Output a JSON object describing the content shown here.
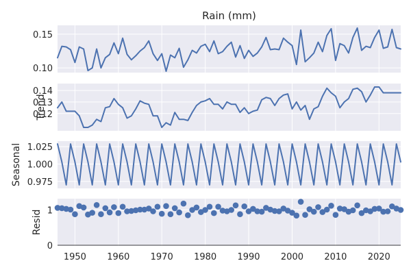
{
  "chart_data": {
    "type": "line",
    "title": "Rain (mm)",
    "colors": {
      "series": "#4c72b0",
      "background": "#eaeaf2",
      "grid": "#ffffff"
    },
    "x": [
      1946,
      1947,
      1948,
      1949,
      1950,
      1951,
      1952,
      1953,
      1954,
      1955,
      1956,
      1957,
      1958,
      1959,
      1960,
      1961,
      1962,
      1963,
      1964,
      1965,
      1966,
      1967,
      1968,
      1969,
      1970,
      1971,
      1972,
      1973,
      1974,
      1975,
      1976,
      1977,
      1978,
      1979,
      1980,
      1981,
      1982,
      1983,
      1984,
      1985,
      1986,
      1987,
      1988,
      1989,
      1990,
      1991,
      1992,
      1993,
      1994,
      1995,
      1996,
      1997,
      1998,
      1999,
      2000,
      2001,
      2002,
      2003,
      2004,
      2005,
      2006,
      2007,
      2008,
      2009,
      2010,
      2011,
      2012,
      2013,
      2014,
      2015,
      2016,
      2017,
      2018,
      2019,
      2020,
      2021,
      2022,
      2023,
      2024,
      2025
    ],
    "xlim": [
      1946,
      2025
    ],
    "xticks": [
      1950,
      1960,
      1970,
      1980,
      1990,
      2000,
      2010,
      2020
    ],
    "xtick_labels": [
      "1950",
      "1960",
      "1970",
      "1980",
      "1990",
      "2000",
      "2010",
      "2020"
    ],
    "panels": [
      {
        "name": "observed",
        "ylabel": "",
        "kind": "line",
        "ylim": [
          0.093,
          0.163
        ],
        "yticks": [
          0.1,
          0.15
        ],
        "ytick_labels": [
          "0.10",
          "0.15"
        ],
        "values": [
          0.115,
          0.132,
          0.131,
          0.127,
          0.108,
          0.131,
          0.128,
          0.096,
          0.1,
          0.128,
          0.1,
          0.115,
          0.12,
          0.137,
          0.121,
          0.144,
          0.12,
          0.112,
          0.118,
          0.125,
          0.13,
          0.14,
          0.121,
          0.111,
          0.121,
          0.095,
          0.119,
          0.115,
          0.129,
          0.101,
          0.112,
          0.126,
          0.122,
          0.132,
          0.135,
          0.124,
          0.14,
          0.121,
          0.124,
          0.132,
          0.138,
          0.116,
          0.133,
          0.114,
          0.126,
          0.117,
          0.122,
          0.131,
          0.145,
          0.127,
          0.128,
          0.127,
          0.144,
          0.138,
          0.133,
          0.105,
          0.156,
          0.109,
          0.115,
          0.122,
          0.138,
          0.124,
          0.148,
          0.158,
          0.111,
          0.136,
          0.133,
          0.122,
          0.145,
          0.159,
          0.126,
          0.132,
          0.13,
          0.145,
          0.156,
          0.129,
          0.131,
          0.157,
          0.13,
          0.128
        ]
      },
      {
        "name": "trend",
        "ylabel": "Trend",
        "kind": "line",
        "ylim": [
          0.105,
          0.146
        ],
        "yticks": [
          0.12,
          0.13,
          0.14
        ],
        "ytick_labels": [
          "0.12",
          "0.13",
          "0.14"
        ],
        "values": [
          0.125,
          0.13,
          0.122,
          0.122,
          0.122,
          0.118,
          0.108,
          0.108,
          0.11,
          0.115,
          0.113,
          0.125,
          0.126,
          0.133,
          0.128,
          0.125,
          0.116,
          0.118,
          0.124,
          0.131,
          0.129,
          0.128,
          0.118,
          0.118,
          0.108,
          0.112,
          0.11,
          0.121,
          0.115,
          0.115,
          0.114,
          0.121,
          0.127,
          0.13,
          0.131,
          0.133,
          0.128,
          0.128,
          0.124,
          0.13,
          0.128,
          0.128,
          0.121,
          0.125,
          0.12,
          0.122,
          0.123,
          0.132,
          0.134,
          0.133,
          0.127,
          0.133,
          0.136,
          0.137,
          0.124,
          0.13,
          0.123,
          0.127,
          0.115,
          0.124,
          0.126,
          0.135,
          0.142,
          0.138,
          0.135,
          0.125,
          0.13,
          0.133,
          0.141,
          0.142,
          0.139,
          0.13,
          0.136,
          0.143,
          0.143,
          0.138,
          0.138,
          0.138,
          0.138,
          0.138
        ]
      },
      {
        "name": "seasonal",
        "ylabel": "Seasonal",
        "kind": "line",
        "ylim": [
          0.965,
          1.033
        ],
        "yticks": [
          0.975,
          1.0,
          1.025
        ],
        "ytick_labels": [
          "0.975",
          "1.000",
          "1.025"
        ],
        "values": [
          1.029,
          1.003,
          0.97,
          1.029,
          1.003,
          0.97,
          1.029,
          1.003,
          0.97,
          1.029,
          1.003,
          0.97,
          1.029,
          1.003,
          0.97,
          1.029,
          1.003,
          0.97,
          1.029,
          1.003,
          0.97,
          1.029,
          1.003,
          0.97,
          1.029,
          1.003,
          0.97,
          1.029,
          1.003,
          0.97,
          1.029,
          1.003,
          0.97,
          1.029,
          1.003,
          0.97,
          1.029,
          1.003,
          0.97,
          1.029,
          1.003,
          0.97,
          1.029,
          1.003,
          0.97,
          1.029,
          1.003,
          0.97,
          1.029,
          1.003,
          0.97,
          1.029,
          1.003,
          0.97,
          1.029,
          1.003,
          0.97,
          1.029,
          1.003,
          0.97,
          1.029,
          1.003,
          0.97,
          1.029,
          1.003,
          0.97,
          1.029,
          1.003,
          0.97,
          1.029,
          1.003,
          0.97,
          1.029,
          1.003,
          0.97,
          1.029,
          1.003,
          0.97,
          1.029,
          1.003
        ]
      },
      {
        "name": "resid",
        "ylabel": "Resid",
        "kind": "scatter",
        "ylim": [
          -0.02,
          1.32
        ],
        "yticks": [
          0,
          1
        ],
        "ytick_labels": [
          "0",
          "1"
        ],
        "baseline": 0,
        "values": [
          1.06,
          1.05,
          1.03,
          1.01,
          0.88,
          1.11,
          1.07,
          0.87,
          0.92,
          1.14,
          0.88,
          1.05,
          0.93,
          1.08,
          0.91,
          1.09,
          0.96,
          0.97,
          0.99,
          1.01,
          1.01,
          1.04,
          0.96,
          1.09,
          0.89,
          1.11,
          0.88,
          1.05,
          0.93,
          1.18,
          0.85,
          1.0,
          1.07,
          0.94,
          1.0,
          1.09,
          0.91,
          1.09,
          0.98,
          0.96,
          1.0,
          1.13,
          0.88,
          1.1,
          0.96,
          1.03,
          0.96,
          0.95,
          1.06,
          1.01,
          0.97,
          0.96,
          1.04,
          0.98,
          0.92,
          0.84,
          1.23,
          0.86,
          1.02,
          0.95,
          1.08,
          0.94,
          1.01,
          1.12,
          0.86,
          1.04,
          1.02,
          0.95,
          0.99,
          1.13,
          0.91,
          0.99,
          0.96,
          1.03,
          1.04,
          0.95,
          0.96,
          1.1,
          1.04,
          1.0
        ]
      }
    ]
  }
}
